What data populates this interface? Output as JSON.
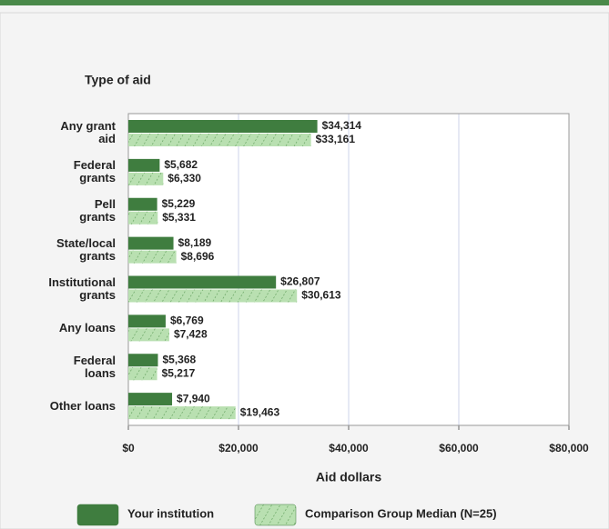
{
  "chart_data": {
    "type": "hbar",
    "title": "Type of aid",
    "xlabel": "Aid dollars",
    "categories": [
      "Any grant\naid",
      "Federal\ngrants",
      "Pell\ngrants",
      "State/local\ngrants",
      "Institutional\ngrants",
      "Any loans",
      "Federal\nloans",
      "Other loans"
    ],
    "series": [
      {
        "name": "Your institution",
        "color": "#3f7d3f",
        "values": [
          34314,
          5682,
          5229,
          8189,
          26807,
          6769,
          5368,
          7940
        ],
        "value_labels": [
          "$34,314",
          "$5,682",
          "$5,229",
          "$8,189",
          "$26,807",
          "$6,769",
          "$5,368",
          "$7,940"
        ]
      },
      {
        "name": "Comparison Group Median (N=25)",
        "color": "#b9e0b1",
        "hatch": true,
        "values": [
          33161,
          6330,
          5331,
          8696,
          30613,
          7428,
          5217,
          19463
        ],
        "value_labels": [
          "$33,161",
          "$6,330",
          "$5,331",
          "$8,696",
          "$30,613",
          "$7,428",
          "$5,217",
          "$19,463"
        ]
      }
    ],
    "xlim": [
      0,
      80000
    ],
    "xticks": [
      {
        "value": 0,
        "label": "$0"
      },
      {
        "value": 20000,
        "label": "$20,000"
      },
      {
        "value": 40000,
        "label": "$40,000"
      },
      {
        "value": 60000,
        "label": "$60,000"
      },
      {
        "value": 80000,
        "label": "$80,000"
      }
    ],
    "grid": true
  }
}
